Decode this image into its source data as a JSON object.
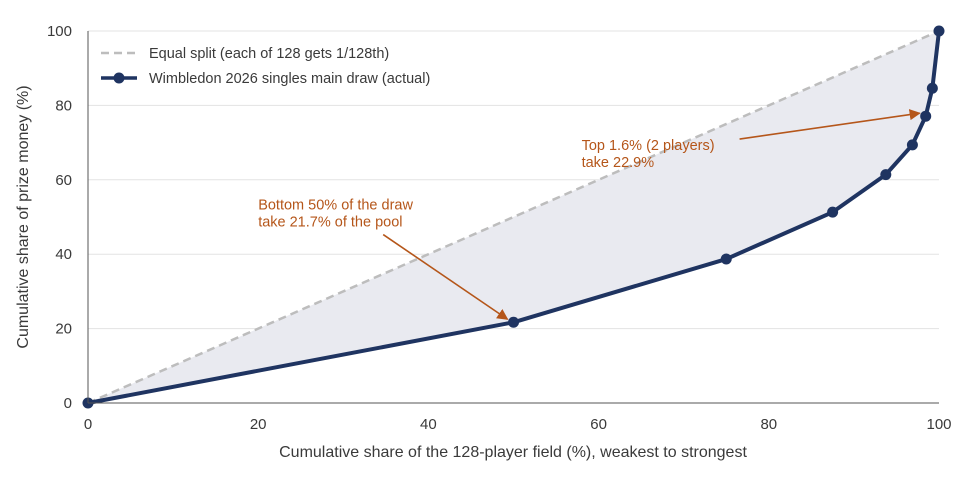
{
  "chart_data": {
    "type": "line",
    "title": "",
    "xlabel": "Cumulative share of the 128-player field (%), weakest to strongest",
    "ylabel": "Cumulative share of prize money (%)",
    "xlim": [
      0,
      100
    ],
    "ylim": [
      0,
      100
    ],
    "x_ticks": [
      "0",
      "20",
      "40",
      "60",
      "80",
      "100"
    ],
    "y_ticks": [
      "0",
      "20",
      "40",
      "60",
      "80",
      "100"
    ],
    "grid": "horizontal",
    "legend_position": "top-left",
    "series": [
      {
        "name": "Equal split (each of 128 gets 1/128th)",
        "style": "dashed",
        "color": "#bdbdbd",
        "x": [
          0,
          100
        ],
        "y": [
          0,
          100
        ]
      },
      {
        "name": "Wimbledon 2026 singles main draw (actual)",
        "style": "solid-markers",
        "color": "#1f3461",
        "x": [
          0,
          50,
          75,
          87.5,
          93.75,
          96.875,
          98.4375,
          99.21875,
          100
        ],
        "y": [
          0,
          21.7,
          38.7,
          51.3,
          61.4,
          69.4,
          77.1,
          84.6,
          100
        ]
      }
    ],
    "fill_between": {
      "color": "#e9eaf0"
    },
    "annotations": [
      {
        "lines": [
          "Bottom 50% of the draw",
          "take 21.7% of the pool"
        ],
        "target": [
          50,
          21.7
        ],
        "text_anchor": [
          20,
          52
        ],
        "color": "#b5561a"
      },
      {
        "lines": [
          "Top 1.6% (2 players)",
          "take 22.9%"
        ],
        "target": [
          98.4375,
          77.1
        ],
        "text_anchor": [
          58,
          68
        ],
        "color": "#b5561a"
      }
    ]
  }
}
